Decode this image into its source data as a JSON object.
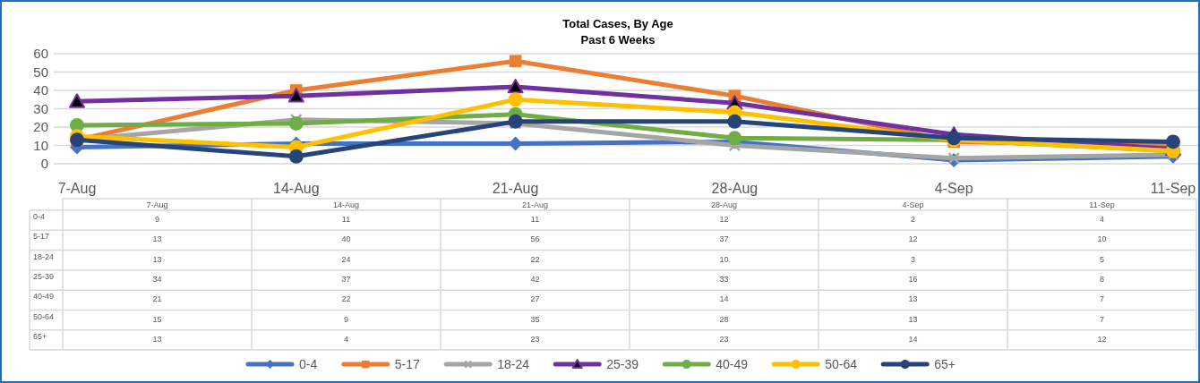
{
  "chart_data": {
    "type": "line",
    "title": "Total Cases, By Age",
    "subtitle": "Past 6 Weeks",
    "categories": [
      "7-Aug",
      "14-Aug",
      "21-Aug",
      "28-Aug",
      "4-Sep",
      "11-Sep"
    ],
    "series": [
      {
        "name": "0-4",
        "color": "#4472c4",
        "marker": "diamond",
        "values": [
          9,
          11,
          11,
          12,
          2,
          4
        ]
      },
      {
        "name": "5-17",
        "color": "#ed7d31",
        "marker": "square",
        "values": [
          13,
          40,
          56,
          37,
          12,
          10
        ]
      },
      {
        "name": "18-24",
        "color": "#a5a5a5",
        "marker": "cross",
        "values": [
          13,
          24,
          22,
          10,
          3,
          5
        ]
      },
      {
        "name": "25-39",
        "color": "#7030a0",
        "marker": "triangle",
        "values": [
          34,
          37,
          42,
          33,
          16,
          8
        ]
      },
      {
        "name": "40-49",
        "color": "#70ad47",
        "marker": "circle",
        "values": [
          21,
          22,
          27,
          14,
          13,
          7
        ]
      },
      {
        "name": "50-64",
        "color": "#ffc000",
        "marker": "circle",
        "values": [
          15,
          9,
          35,
          28,
          13,
          7
        ]
      },
      {
        "name": "65+",
        "color": "#264478",
        "marker": "circle",
        "values": [
          13,
          4,
          23,
          23,
          14,
          12
        ]
      }
    ],
    "ylim": [
      0,
      60
    ],
    "yticks": [
      0,
      10,
      20,
      30,
      40,
      50,
      60
    ],
    "grid": "y",
    "legend": "bottom",
    "data_labels": true
  }
}
